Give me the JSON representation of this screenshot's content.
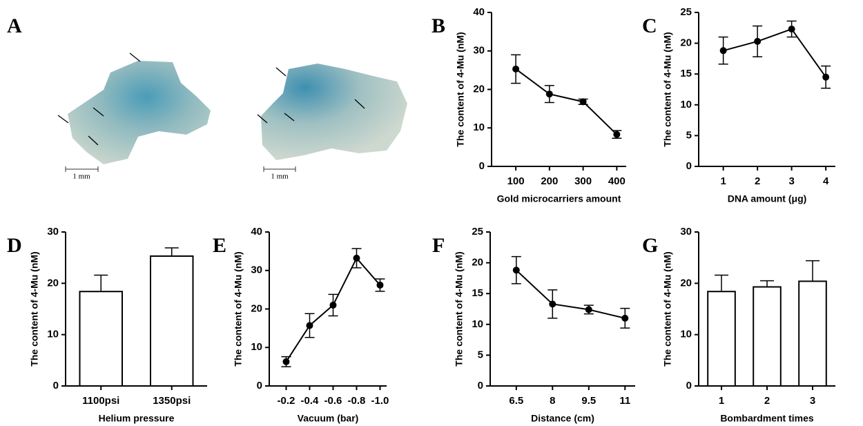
{
  "panel_a": {
    "letter": "A",
    "scale_labels": [
      "1 mm",
      "1 mm"
    ]
  },
  "chart_data": [
    {
      "type": "line",
      "letter": "B",
      "ylabel": "The content of 4-Mu (nM)",
      "xlabel": "Gold microcarriers amount",
      "categories": [
        "100",
        "200",
        "300",
        "400"
      ],
      "values": [
        25.3,
        18.8,
        16.8,
        8.3
      ],
      "errors": [
        3.7,
        2.2,
        0.7,
        1.0
      ],
      "color": "#000000",
      "ylim": [
        0,
        40
      ],
      "yticks": [
        0,
        10,
        20,
        30,
        40
      ]
    },
    {
      "type": "line",
      "letter": "C",
      "ylabel": "The content of 4-Mu (nM)",
      "xlabel": "DNA amount (μg)",
      "categories": [
        "1",
        "2",
        "3",
        "4"
      ],
      "values": [
        18.8,
        20.3,
        22.3,
        14.5
      ],
      "errors": [
        2.2,
        2.5,
        1.3,
        1.8
      ],
      "color": "#000000",
      "ylim": [
        0,
        25
      ],
      "yticks": [
        0,
        5,
        10,
        15,
        20,
        25
      ]
    },
    {
      "type": "bar",
      "letter": "D",
      "ylabel": "The content of 4-Mu (nM)",
      "xlabel": "Helium pressure",
      "categories": [
        "1100psi",
        "1350psi"
      ],
      "values": [
        18.4,
        25.3
      ],
      "errors": [
        3.2,
        1.6
      ],
      "color": "#ffffff",
      "ylim": [
        0,
        30
      ],
      "yticks": [
        0,
        10,
        20,
        30
      ]
    },
    {
      "type": "line",
      "letter": "E",
      "ylabel": "The content of 4-Mu (nM)",
      "xlabel": "Vacuum (bar)",
      "categories": [
        "-0.2",
        "-0.4",
        "-0.6",
        "-0.8",
        "-1.0"
      ],
      "values": [
        6.3,
        15.7,
        21.0,
        33.2,
        26.2
      ],
      "errors": [
        1.3,
        3.1,
        2.8,
        2.5,
        1.6
      ],
      "color": "#000000",
      "ylim": [
        0,
        40
      ],
      "yticks": [
        0,
        10,
        20,
        30,
        40
      ]
    },
    {
      "type": "line",
      "letter": "F",
      "ylabel": "The content of 4-Mu (nM)",
      "xlabel": "Distance (cm)",
      "categories": [
        "6.5",
        "8",
        "9.5",
        "11"
      ],
      "values": [
        18.8,
        13.3,
        12.4,
        11.0
      ],
      "errors": [
        2.2,
        2.3,
        0.7,
        1.6
      ],
      "color": "#000000",
      "ylim": [
        0,
        25
      ],
      "yticks": [
        0,
        5,
        10,
        15,
        20,
        25
      ]
    },
    {
      "type": "bar",
      "letter": "G",
      "ylabel": "The content of 4-Mu (nM)",
      "xlabel": "Bombardment times",
      "categories": [
        "1",
        "2",
        "3"
      ],
      "values": [
        18.4,
        19.3,
        20.4
      ],
      "errors": [
        3.2,
        1.2,
        4.0
      ],
      "color": "#ffffff",
      "ylim": [
        0,
        30
      ],
      "yticks": [
        0,
        10,
        20,
        30
      ]
    }
  ]
}
